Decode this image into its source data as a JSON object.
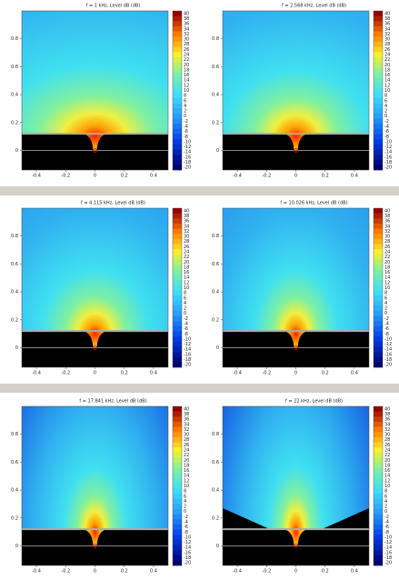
{
  "chart_data": [
    {
      "type": "heatmap",
      "title": "f = 1 kHz, Level dB (dB)",
      "xlim": [
        -0.5,
        0.5
      ],
      "ylim": [
        -0.14,
        1
      ],
      "xticks": [
        -0.4,
        -0.2,
        0,
        0.2,
        0.4
      ],
      "yticks": [
        0,
        0.2,
        0.4,
        0.6,
        0.8
      ],
      "clim": [
        -21,
        41
      ],
      "cticks": [
        40,
        38,
        36,
        34,
        32,
        30,
        28,
        26,
        24,
        22,
        20,
        18,
        16,
        14,
        12,
        10,
        8,
        6,
        4,
        2,
        0,
        -2,
        -4,
        -6,
        -8,
        -10,
        -12,
        -14,
        -16,
        -18,
        -20
      ]
    },
    {
      "type": "heatmap",
      "title": "f = 2.568 kHz, Level dB (dB)",
      "xlim": [
        -0.5,
        0.5
      ],
      "ylim": [
        -0.14,
        1
      ],
      "xticks": [
        -0.4,
        -0.2,
        0,
        0.2,
        0.4
      ],
      "yticks": [
        0,
        0.2,
        0.4,
        0.6,
        0.8
      ],
      "clim": [
        -21,
        41
      ],
      "cticks": [
        40,
        38,
        36,
        34,
        32,
        30,
        28,
        26,
        24,
        22,
        20,
        18,
        16,
        14,
        12,
        10,
        8,
        6,
        4,
        2,
        0,
        -2,
        -4,
        -6,
        -8,
        -10,
        -12,
        -14,
        -16,
        -18,
        -20
      ]
    },
    {
      "type": "heatmap",
      "title": "f = 4.115 kHz, Level dB (dB)",
      "xlim": [
        -0.5,
        0.5
      ],
      "ylim": [
        -0.14,
        1
      ],
      "xticks": [
        -0.4,
        -0.2,
        0,
        0.2,
        0.4
      ],
      "yticks": [
        0,
        0.2,
        0.4,
        0.6,
        0.8
      ],
      "clim": [
        -21,
        41
      ],
      "cticks": [
        40,
        38,
        36,
        34,
        32,
        30,
        28,
        26,
        24,
        22,
        20,
        18,
        16,
        14,
        12,
        10,
        8,
        6,
        4,
        2,
        0,
        -2,
        -4,
        -6,
        -8,
        -10,
        -12,
        -14,
        -16,
        -18,
        -20
      ]
    },
    {
      "type": "heatmap",
      "title": "f = 10.026 kHz, Level dB (dB)",
      "xlim": [
        -0.5,
        0.5
      ],
      "ylim": [
        -0.14,
        1
      ],
      "xticks": [
        -0.4,
        -0.2,
        0,
        0.2,
        0.4
      ],
      "yticks": [
        0,
        0.2,
        0.4,
        0.6,
        0.8
      ],
      "clim": [
        -21,
        41
      ],
      "cticks": [
        40,
        38,
        36,
        34,
        32,
        30,
        28,
        26,
        24,
        22,
        20,
        18,
        16,
        14,
        12,
        10,
        8,
        6,
        4,
        2,
        0,
        -2,
        -4,
        -6,
        -8,
        -10,
        -12,
        -14,
        -16,
        -18,
        -20
      ]
    },
    {
      "type": "heatmap",
      "title": "f = 17.841 kHz, Level dB (dB)",
      "xlim": [
        -0.5,
        0.5
      ],
      "ylim": [
        -0.14,
        1
      ],
      "xticks": [
        -0.4,
        -0.2,
        0,
        0.2,
        0.4
      ],
      "yticks": [
        0,
        0.2,
        0.4,
        0.6,
        0.8
      ],
      "clim": [
        -21,
        41
      ],
      "cticks": [
        40,
        38,
        36,
        34,
        32,
        30,
        28,
        26,
        24,
        22,
        20,
        18,
        16,
        14,
        12,
        10,
        8,
        6,
        4,
        2,
        0,
        -2,
        -4,
        -6,
        -8,
        -10,
        -12,
        -14,
        -16,
        -18,
        -20
      ]
    },
    {
      "type": "heatmap",
      "title": "f = 22 kHz, Level dB (dB)",
      "xlim": [
        -0.5,
        0.5
      ],
      "ylim": [
        -0.14,
        1
      ],
      "xticks": [
        -0.4,
        -0.2,
        0,
        0.2,
        0.4
      ],
      "yticks": [
        0,
        0.2,
        0.4,
        0.6,
        0.8
      ],
      "clim": [
        -21,
        41
      ],
      "cticks": [
        40,
        38,
        36,
        34,
        32,
        30,
        28,
        26,
        24,
        22,
        20,
        18,
        16,
        14,
        12,
        10,
        8,
        6,
        4,
        2,
        0,
        -2,
        -4,
        -6,
        -8,
        -10,
        -12,
        -14,
        -16,
        -18,
        -20
      ]
    }
  ]
}
